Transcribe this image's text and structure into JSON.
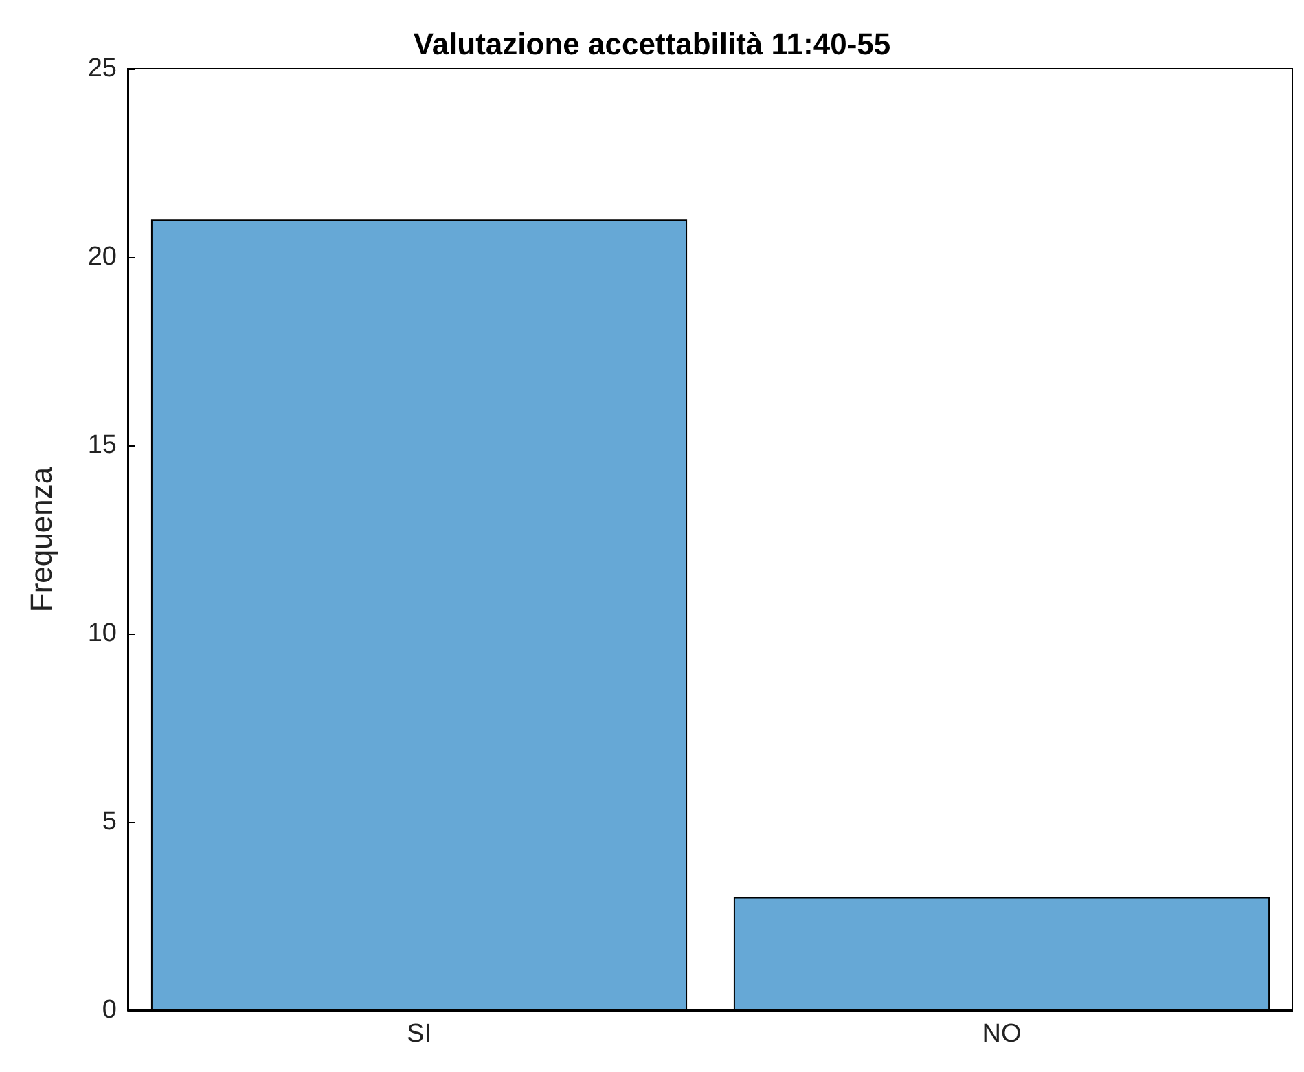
{
  "chart_data": {
    "type": "bar",
    "title": "Valutazione accettabilità 11:40-55",
    "ylabel": "Frequenza",
    "categories": [
      "SI",
      "NO"
    ],
    "values": [
      21,
      3
    ],
    "color": "#66a8d6",
    "ylim": [
      0,
      25
    ],
    "yticks": [
      0,
      5,
      10,
      15,
      20,
      25
    ],
    "grid": false
  }
}
